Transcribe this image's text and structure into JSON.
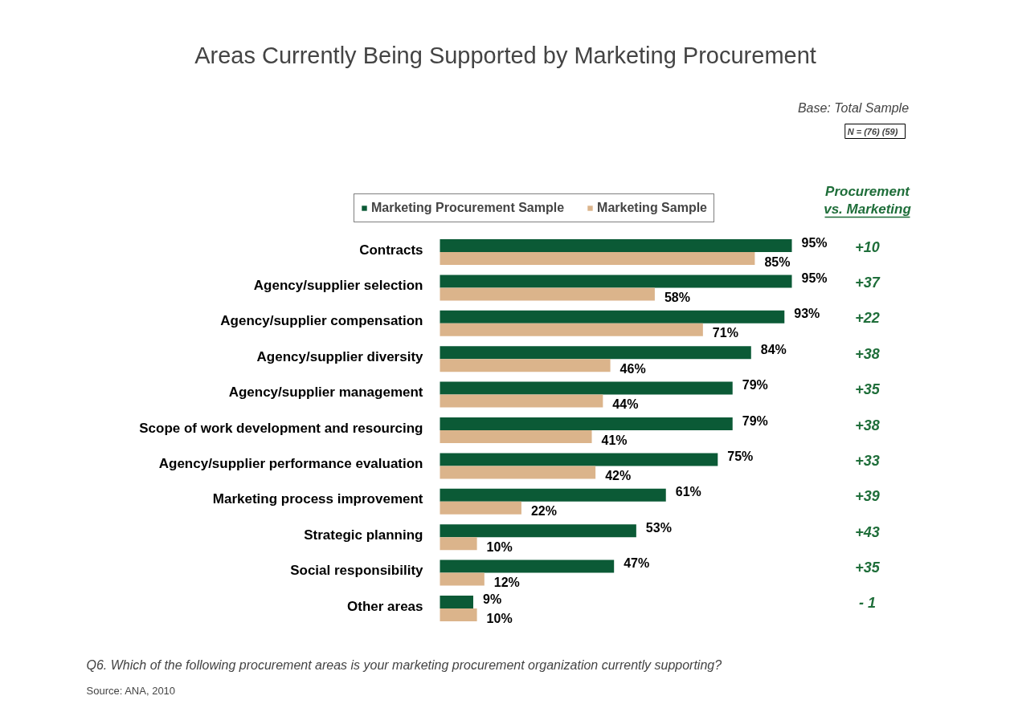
{
  "chart_data": {
    "type": "bar",
    "orientation": "horizontal",
    "title": "Areas Currently Being Supported by Marketing Procurement",
    "categories": [
      "Contracts",
      "Agency/supplier selection",
      "Agency/supplier compensation",
      "Agency/supplier diversity",
      "Agency/supplier management",
      "Scope of work development and resourcing",
      "Agency/supplier performance evaluation",
      "Marketing process improvement",
      "Strategic planning",
      "Social responsibility",
      "Other areas"
    ],
    "series": [
      {
        "name": "Marketing Procurement Sample",
        "color": "#0b5a36",
        "values": [
          95,
          95,
          93,
          84,
          79,
          79,
          75,
          61,
          53,
          47,
          9
        ],
        "value_labels": [
          "95%",
          "95%",
          "93%",
          "84%",
          "79%",
          "79%",
          "75%",
          "61%",
          "53%",
          "47%",
          "9%"
        ]
      },
      {
        "name": "Marketing Sample",
        "color": "#dbb48b",
        "values": [
          85,
          58,
          71,
          46,
          44,
          41,
          42,
          22,
          10,
          12,
          10
        ],
        "value_labels": [
          "85%",
          "58%",
          "71%",
          "46%",
          "44%",
          "41%",
          "42%",
          "22%",
          "10%",
          "12%",
          "10%"
        ]
      }
    ],
    "legend": "top",
    "tick_labels": false,
    "grid": false,
    "annotations": [
      "Base:  Total Sample",
      "N =  (76)  (59)",
      "Procurement vs. Marketing",
      "+10",
      "+37",
      "+22",
      "+38",
      "+35",
      "+38",
      "+33",
      "+39",
      "+43",
      "+35",
      "- 1",
      "Q6. Which of the following procurement areas is your marketing procurement organization currently supporting?",
      "Source:  ANA, 2010"
    ]
  }
}
